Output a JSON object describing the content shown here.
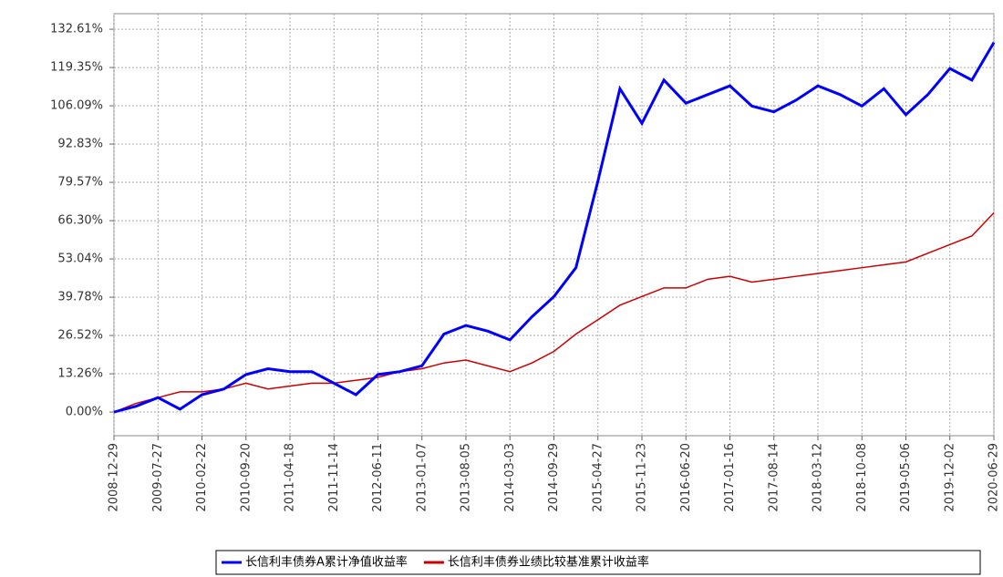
{
  "chart_data": {
    "type": "line",
    "x": [
      "2008-12-29",
      "2009-04-13",
      "2009-07-27",
      "2009-11-09",
      "2010-02-22",
      "2010-06-07",
      "2010-09-20",
      "2011-01-03",
      "2011-04-18",
      "2011-08-01",
      "2011-11-14",
      "2012-02-27",
      "2012-06-11",
      "2012-09-24",
      "2013-01-07",
      "2013-04-22",
      "2013-08-05",
      "2013-11-18",
      "2014-03-03",
      "2014-06-16",
      "2014-09-29",
      "2015-01-12",
      "2015-04-27",
      "2015-08-10",
      "2015-11-23",
      "2016-03-07",
      "2016-06-20",
      "2016-10-03",
      "2017-01-16",
      "2017-05-01",
      "2017-08-14",
      "2017-11-27",
      "2018-03-12",
      "2018-06-25",
      "2018-10-08",
      "2019-01-21",
      "2019-05-06",
      "2019-08-19",
      "2019-12-02",
      "2020-03-16",
      "2020-06-29"
    ],
    "series": [
      {
        "name": "长信利丰债券A累计净值收益率",
        "color": "#0000ff",
        "values": [
          0,
          2,
          5,
          1,
          6,
          8,
          13,
          15,
          14,
          14,
          10,
          6,
          13,
          14,
          16,
          27,
          30,
          28,
          25,
          33,
          40,
          50,
          80,
          112,
          100,
          115,
          107,
          110,
          113,
          106,
          104,
          108,
          113,
          110,
          106,
          112,
          103,
          110,
          119,
          115,
          128
        ]
      },
      {
        "name": "长信利丰债券业绩比较基准累计收益率",
        "color": "#cc0000",
        "values": [
          0,
          3,
          5,
          7,
          7,
          8,
          10,
          8,
          9,
          10,
          10,
          11,
          12,
          14,
          15,
          17,
          18,
          16,
          14,
          17,
          21,
          27,
          32,
          37,
          40,
          43,
          43,
          46,
          47,
          45,
          46,
          47,
          48,
          49,
          50,
          51,
          52,
          55,
          58,
          61,
          69
        ]
      }
    ],
    "xlim": [
      "2008-12-29",
      "2020-06-29"
    ],
    "xticks": [
      "2008-12-29",
      "2009-07-27",
      "2010-02-22",
      "2010-09-20",
      "2011-04-18",
      "2011-11-14",
      "2012-06-11",
      "2013-01-07",
      "2013-08-05",
      "2014-03-03",
      "2014-09-29",
      "2015-04-27",
      "2015-11-23",
      "2016-06-20",
      "2017-01-16",
      "2017-08-14",
      "2018-03-12",
      "2018-10-08",
      "2019-05-06",
      "2019-12-02",
      "2020-06-29"
    ],
    "ylim": [
      -8.2,
      138
    ],
    "yticks": [
      {
        "value": 0,
        "label": "0.00%"
      },
      {
        "value": 13.26,
        "label": "13.26%"
      },
      {
        "value": 26.52,
        "label": "26.52%"
      },
      {
        "value": 39.78,
        "label": "39.78%"
      },
      {
        "value": 53.04,
        "label": "53.04%"
      },
      {
        "value": 66.3,
        "label": "66.30%"
      },
      {
        "value": 79.57,
        "label": "79.57%"
      },
      {
        "value": 92.83,
        "label": "92.83%"
      },
      {
        "value": 106.09,
        "label": "106.09%"
      },
      {
        "value": 119.35,
        "label": "119.35%"
      },
      {
        "value": 132.61,
        "label": "132.61%"
      }
    ],
    "grid": true
  }
}
